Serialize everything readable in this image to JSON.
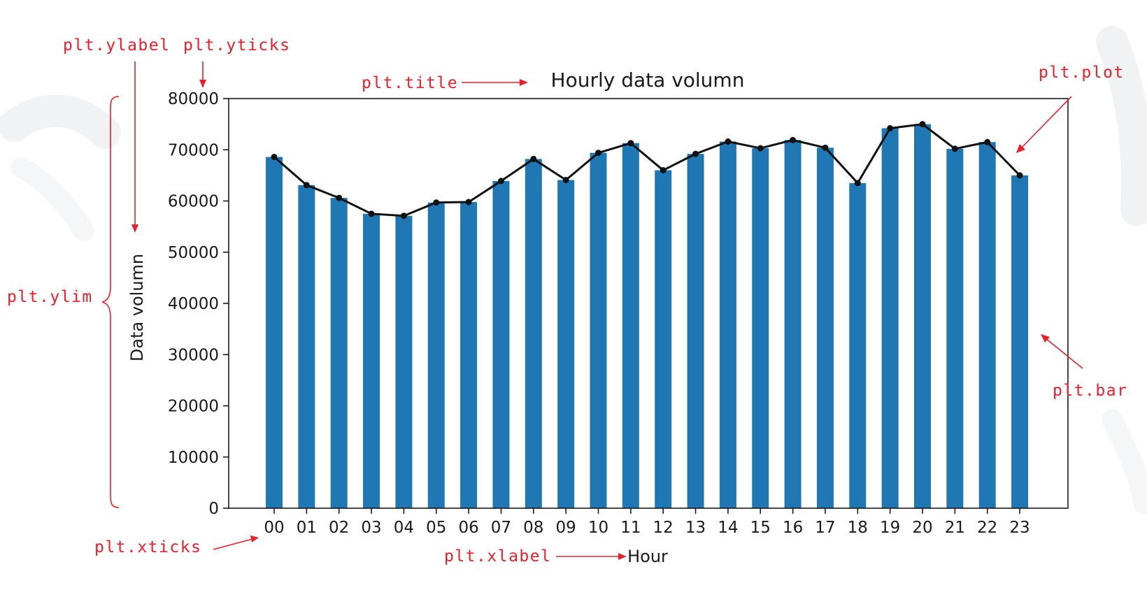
{
  "chart_data": {
    "type": "bar",
    "title": "Hourly data volumn",
    "xlabel": "Hour",
    "ylabel": "Data volumn",
    "categories": [
      "00",
      "01",
      "02",
      "03",
      "04",
      "05",
      "06",
      "07",
      "08",
      "09",
      "10",
      "11",
      "12",
      "13",
      "14",
      "15",
      "16",
      "17",
      "18",
      "19",
      "20",
      "21",
      "22",
      "23"
    ],
    "values": [
      68600,
      63100,
      60600,
      57500,
      57100,
      59700,
      59800,
      63900,
      68200,
      64100,
      69400,
      71300,
      66000,
      69200,
      71600,
      70300,
      71900,
      70400,
      63500,
      74200,
      75000,
      70200,
      71500,
      65000
    ],
    "line_overlay": true,
    "ylim": [
      0,
      80000
    ],
    "yticks": [
      0,
      10000,
      20000,
      30000,
      40000,
      50000,
      60000,
      70000,
      80000
    ],
    "ytick_labels": [
      "0",
      "10000",
      "20000",
      "30000",
      "40000",
      "50000",
      "60000",
      "70000",
      "80000"
    ],
    "grid": false,
    "legend": "none",
    "colors": {
      "bar": "#1f77b4",
      "line": "#111111",
      "annotation": "#e8202a"
    }
  },
  "annotations": {
    "ylabel": "plt.ylabel",
    "yticks": "plt.yticks",
    "title": "plt.title",
    "plot": "plt.plot",
    "ylim": "plt.ylim",
    "bar": "plt.bar",
    "xticks": "plt.xticks",
    "xlabel": "plt.xlabel"
  }
}
